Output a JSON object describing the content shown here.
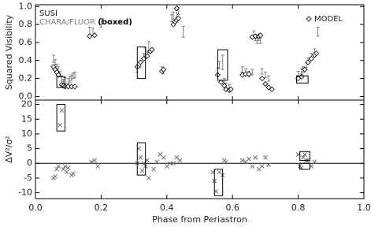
{
  "chart_data": [
    {
      "type": "scatter",
      "ylabel": "Squared Visibility",
      "xlim": [
        0,
        1
      ],
      "xticks": [
        {
          "value": 0,
          "label": "0.0"
        },
        {
          "value": 0.2,
          "label": "0.2"
        },
        {
          "value": 0.4,
          "label": "0.4"
        },
        {
          "value": 0.6,
          "label": "0.6"
        },
        {
          "value": 0.8,
          "label": "0.8"
        },
        {
          "value": 1,
          "label": "1.0"
        }
      ],
      "ylim": [
        -0.04,
        1.02
      ],
      "yticks": [
        {
          "value": 0,
          "label": "0.0"
        },
        {
          "value": 0.2,
          "label": "0.2"
        },
        {
          "value": 0.4,
          "label": "0.4"
        },
        {
          "value": 0.6,
          "label": "0.6"
        },
        {
          "value": 0.8,
          "label": "0.8"
        },
        {
          "value": 1,
          "label": "1.0"
        }
      ],
      "legend_texts": [
        "CHARA/FLUOR",
        "(boxed)"
      ],
      "series": [
        {
          "name": "SUSI",
          "color": "#808080",
          "marker": "errorbar",
          "x": [
            0.055,
            0.06,
            0.065,
            0.07,
            0.075,
            0.08,
            0.085,
            0.09,
            0.1,
            0.105,
            0.11,
            0.115,
            0.12,
            0.165,
            0.175,
            0.2,
            0.31,
            0.32,
            0.33,
            0.335,
            0.34,
            0.345,
            0.385,
            0.39,
            0.415,
            0.42,
            0.43,
            0.435,
            0.45,
            0.555,
            0.56,
            0.57,
            0.575,
            0.58,
            0.59,
            0.63,
            0.64,
            0.65,
            0.66,
            0.665,
            0.67,
            0.675,
            0.68,
            0.685,
            0.69,
            0.7,
            0.71,
            0.8,
            0.81,
            0.815,
            0.825,
            0.83,
            0.84,
            0.85,
            0.86
          ],
          "values": [
            0.42,
            0.38,
            0.33,
            0.3,
            0.25,
            0.2,
            0.16,
            0.18,
            0.17,
            0.19,
            0.21,
            0.23,
            0.24,
            0.73,
            0.72,
            0.82,
            0.3,
            0.35,
            0.45,
            0.5,
            0.48,
            0.55,
            0.3,
            0.28,
            0.87,
            0.9,
            0.92,
            0.95,
            0.72,
            0.28,
            0.35,
            0.38,
            0.17,
            0.12,
            0.1,
            0.3,
            0.28,
            0.25,
            0.27,
            0.7,
            0.65,
            0.62,
            0.65,
            0.62,
            0.28,
            0.24,
            0.2,
            0.25,
            0.28,
            0.3,
            0.35,
            0.4,
            0.45,
            0.5,
            0.72
          ],
          "errors": [
            0.04,
            0.03,
            0.03,
            0.03,
            0.03,
            0.03,
            0.03,
            0.03,
            0.03,
            0.03,
            0.03,
            0.03,
            0.03,
            0.04,
            0.04,
            0.05,
            0.03,
            0.03,
            0.03,
            0.04,
            0.03,
            0.06,
            0.03,
            0.03,
            0.04,
            0.04,
            0.04,
            0.04,
            0.06,
            0.04,
            0.04,
            0.08,
            0.03,
            0.03,
            0.03,
            0.03,
            0.03,
            0.03,
            0.03,
            0.03,
            0.03,
            0.03,
            0.03,
            0.03,
            0.03,
            0.03,
            0.03,
            0.03,
            0.03,
            0.03,
            0.03,
            0.03,
            0.03,
            0.03,
            0.05
          ]
        },
        {
          "name": "MODEL",
          "color": "#000000",
          "marker": "diamond",
          "x": [
            0.055,
            0.06,
            0.065,
            0.07,
            0.08,
            0.085,
            0.09,
            0.1,
            0.11,
            0.12,
            0.165,
            0.18,
            0.31,
            0.32,
            0.33,
            0.34,
            0.35,
            0.355,
            0.385,
            0.39,
            0.42,
            0.425,
            0.43,
            0.435,
            0.43,
            0.555,
            0.565,
            0.575,
            0.58,
            0.59,
            0.595,
            0.63,
            0.64,
            0.65,
            0.66,
            0.67,
            0.68,
            0.685,
            0.69,
            0.7,
            0.71,
            0.72,
            0.8,
            0.81,
            0.82,
            0.83,
            0.84,
            0.85,
            0.855
          ],
          "values": [
            0.33,
            0.3,
            0.27,
            0.24,
            0.13,
            0.12,
            0.11,
            0.11,
            0.11,
            0.11,
            0.67,
            0.68,
            0.33,
            0.38,
            0.42,
            0.45,
            0.5,
            0.52,
            0.28,
            0.3,
            0.8,
            0.83,
            0.85,
            0.87,
            0.98,
            0.24,
            0.16,
            0.12,
            0.08,
            0.07,
            0.08,
            0.24,
            0.25,
            0.25,
            0.66,
            0.67,
            0.67,
            0.68,
            0.2,
            0.14,
            0.1,
            0.08,
            0.2,
            0.22,
            0.3,
            0.38,
            0.42,
            0.46,
            0.48
          ]
        }
      ],
      "boxes": [
        {
          "x": [
            0.065,
            0.09
          ],
          "y": [
            0.1,
            0.22
          ]
        },
        {
          "x": [
            0.31,
            0.335
          ],
          "y": [
            0.2,
            0.55
          ]
        },
        {
          "x": [
            0.555,
            0.585
          ],
          "y": [
            0.18,
            0.52
          ]
        },
        {
          "x": [
            0.795,
            0.83
          ],
          "y": [
            0.15,
            0.23
          ]
        }
      ]
    },
    {
      "type": "scatter",
      "ylabel": "ΔV²/σ²",
      "xlabel": "Phase from Periastron",
      "xlim": [
        0,
        1
      ],
      "xticks": [
        {
          "value": 0,
          "label": "0.0"
        },
        {
          "value": 0.2,
          "label": "0.2"
        },
        {
          "value": 0.4,
          "label": "0.4"
        },
        {
          "value": 0.6,
          "label": "0.6"
        },
        {
          "value": 0.8,
          "label": "0.8"
        },
        {
          "value": 1,
          "label": "1.0"
        }
      ],
      "ylim": [
        -12,
        21.5
      ],
      "yticks": [
        -10,
        -5,
        0,
        5,
        10,
        15,
        20
      ],
      "reference_line": 0,
      "series": [
        {
          "color": "#707070",
          "marker": "cross",
          "x": [
            0.055,
            0.06,
            0.065,
            0.07,
            0.075,
            0.08,
            0.085,
            0.09,
            0.095,
            0.1,
            0.11,
            0.115,
            0.17,
            0.18,
            0.19,
            0.31,
            0.315,
            0.32,
            0.325,
            0.33,
            0.335,
            0.34,
            0.345,
            0.36,
            0.37,
            0.38,
            0.39,
            0.4,
            0.41,
            0.42,
            0.43,
            0.44,
            0.54,
            0.545,
            0.55,
            0.56,
            0.57,
            0.575,
            0.58,
            0.63,
            0.64,
            0.65,
            0.66,
            0.67,
            0.68,
            0.69,
            0.7,
            0.71,
            0.8,
            0.805,
            0.81,
            0.815,
            0.82,
            0.825,
            0.83,
            0.84,
            0.85
          ],
          "values": [
            -5,
            -4.5,
            -2,
            -1,
            13,
            18,
            -2,
            -1,
            -3,
            -1.5,
            -4,
            -3.5,
            0.5,
            1,
            -1,
            0,
            5,
            2,
            -2.5,
            0,
            -1,
            1,
            -5,
            -2,
            0.5,
            3,
            2,
            -1,
            0,
            0,
            2,
            1,
            -3,
            -6,
            -9.5,
            -3,
            -4,
            1,
            0.5,
            1,
            0.5,
            1.5,
            -1,
            2,
            -2,
            -1,
            2,
            -0.5,
            3,
            -1,
            -1.5,
            2,
            3,
            1,
            1,
            -1,
            0.5
          ]
        }
      ],
      "boxes": [
        {
          "x": [
            0.065,
            0.09
          ],
          "y": [
            11,
            20
          ]
        },
        {
          "x": [
            0.31,
            0.335
          ],
          "y": [
            -4,
            7
          ]
        },
        {
          "x": [
            0.545,
            0.57
          ],
          "y": [
            -11,
            -2
          ]
        },
        {
          "x": [
            0.805,
            0.835
          ],
          "y": [
            1,
            4
          ]
        },
        {
          "x": [
            0.805,
            0.835
          ],
          "y": [
            -2,
            0
          ]
        }
      ]
    }
  ]
}
